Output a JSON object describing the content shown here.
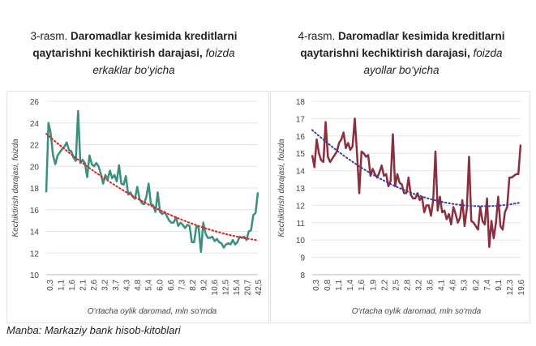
{
  "chart_data": [
    {
      "type": "line",
      "title_prefix": "3-rasm.",
      "title_bold": "Daromadlar kesimida kreditlarni qaytarishni kechiktirish darajasi,",
      "title_italic": "foizda",
      "subtitle": "erkaklar bo‘yicha",
      "xlabel": "O‘rtacha oylik daromad, mln so‘mda",
      "ylabel": "Kechiktirish darajasi, foizda",
      "ylim": [
        10,
        26
      ],
      "yticks": [
        10,
        12,
        14,
        16,
        18,
        20,
        22,
        24,
        26
      ],
      "xtick_labels": [
        "0,3",
        "1,1",
        "1,6",
        "2,1",
        "2,6",
        "3,2",
        "3,7",
        "4,3",
        "4,8",
        "5,4",
        "6,0",
        "6,6",
        "7,3",
        "8,2",
        "9,2",
        "10,6",
        "12,5",
        "15,4",
        "20,7",
        "42,5"
      ],
      "series": [
        {
          "name": "erkaklar",
          "color": "#3a8f7e",
          "values": [
            17.6,
            24,
            23,
            21,
            20.2,
            21,
            21.3,
            21.6,
            21.8,
            22.2,
            21.5,
            21.4,
            20.8,
            20.5,
            25.1,
            20.3,
            20.6,
            20.3,
            19,
            21,
            20.2,
            20,
            20.3,
            20,
            19.3,
            18.4,
            19.2,
            18.8,
            19.6,
            18.9,
            19.2,
            18.6,
            20.1,
            18.4,
            18.3,
            19.1,
            17.4,
            17.6,
            17.2,
            17,
            18.1,
            17,
            16.6,
            16.5,
            17.2,
            18.4,
            16.5,
            16.4,
            15.8,
            17.6,
            15.8,
            15.6,
            15.8,
            15.4,
            15,
            14.8,
            14.8,
            15.3,
            14.5,
            14.8,
            14.6,
            14.3,
            14.6,
            14.5,
            13,
            13,
            14.5,
            14.3,
            12.1,
            14.8,
            13.8,
            13.4,
            13.4,
            13.5,
            13.1,
            13.3,
            13,
            12.9,
            12.5,
            12.8,
            12.9,
            12.8,
            13.2,
            12.8,
            13,
            13.5,
            13.4,
            13.5,
            13.2,
            14,
            14.1,
            15.5,
            15.7,
            17.6
          ]
        }
      ],
      "trendline": {
        "type": "polynomial",
        "color": "#e02020"
      }
    },
    {
      "type": "line",
      "title_prefix": "4-rasm.",
      "title_bold": "Daromadlar kesimida kreditlarni qaytarishni kechiktirish darajasi,",
      "title_italic": "foizda",
      "subtitle": "ayollar bo‘yicha",
      "xlabel": "O‘rtacha oylik daromad, mln so‘mda",
      "ylabel": "Kechiktirish darajasi, foizda",
      "ylim": [
        8,
        18
      ],
      "yticks": [
        8,
        9,
        10,
        11,
        12,
        13,
        14,
        15,
        16,
        17,
        18
      ],
      "xtick_labels": [
        "0,3",
        "0,8",
        "1,1",
        "1,4",
        "1,6",
        "1,9",
        "2,2",
        "2,5",
        "2,8",
        "3,2",
        "3,6",
        "4,1",
        "4,6",
        "5,3",
        "6,2",
        "7,4",
        "9,1",
        "12,3",
        "19,6"
      ],
      "series": [
        {
          "name": "ayollar",
          "color": "#8b2f3f",
          "values": [
            14.9,
            14.2,
            15.8,
            15,
            14.6,
            14.5,
            16.8,
            14.8,
            14.5,
            14.7,
            14.9,
            15.1,
            15.6,
            15.8,
            16.2,
            15.3,
            15.6,
            15.2,
            15.4,
            17,
            15,
            12.7,
            15.1,
            15,
            14.8,
            14.9,
            13.7,
            14.1,
            13.8,
            13.6,
            13.9,
            14.3,
            13.7,
            13.8,
            13.1,
            13.4,
            16.1,
            13.1,
            13.8,
            13.3,
            13.2,
            12.7,
            12.7,
            13.6,
            12.6,
            12.4,
            12.4,
            12.7,
            12.3,
            12.5,
            11.6,
            12,
            12,
            11.4,
            12.3,
            15.1,
            11.7,
            12.5,
            11.6,
            11.7,
            11.2,
            11.5,
            10.9,
            11.9,
            11.5,
            11,
            11.3,
            12.3,
            10.8,
            11.8,
            14.8,
            11.1,
            11,
            10.8,
            10.6,
            11.9,
            11.1,
            10.9,
            12.4,
            9.6,
            11.1,
            10.1,
            11,
            12.5,
            10.8,
            10.6,
            11.6,
            11.9,
            13.6,
            13.6,
            13.7,
            13.8,
            13.8,
            15.5
          ]
        }
      ],
      "trendline": {
        "type": "polynomial",
        "color": "#3a3f9a"
      }
    }
  ],
  "source": "Manba: Markaziy bank hisob-kitoblari"
}
